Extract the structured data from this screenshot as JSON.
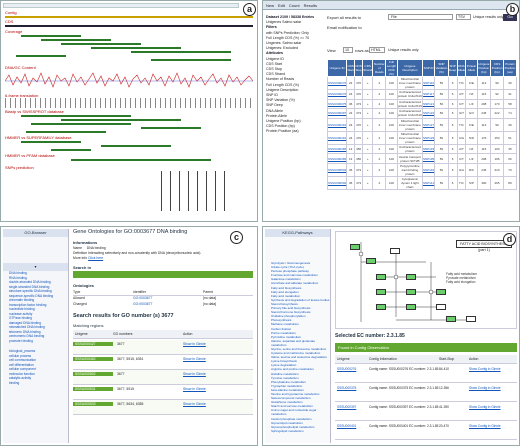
{
  "panel_a": {
    "label": "a",
    "tracks": [
      "Contig",
      "CDS",
      "Coverage",
      "DNA/GC Content",
      "6-frame translation",
      "Blastp vs SWISSPROT database",
      "HMMER vs SUPERFAMILY database",
      "HMMER vs PFAM database",
      "SNPs prediction"
    ]
  },
  "panel_b": {
    "label": "b",
    "toolbar": [
      "New",
      "Edit",
      "Count",
      "Results"
    ],
    "side": [
      "Dataset 2109 / 58338 Entries",
      "Unigenes Salmo salar",
      "Filters",
      "with SNPs Prediction: Only",
      "Full Length CDS (%) >= 70",
      "Ungenes: Salmo salar",
      "Unigenes: Excluded",
      "Attributes",
      "Unigene ID",
      "CDS Start",
      "CDS Stop",
      "CDS Strand",
      "Number of Reads",
      "Full Length CDS (%)",
      "Unigene Description",
      "SNP ID",
      "SNP Variation (%)",
      "SNP Deep",
      "DNA Allele",
      "Protein Allele",
      "Unigene Position (bp)",
      "CDS Position (bp)",
      "Protein Position (aa)"
    ],
    "export_label": "Export all results to",
    "export_value": "File",
    "export_format": "TSV",
    "unique": "Unique results only",
    "go": "Go",
    "email": "Email notification to",
    "view_label": "View",
    "view_count": "10",
    "rows_as": "rows as",
    "rows_format": "HTML",
    "cols": [
      "Unigene ID",
      "CDS Start",
      "CDS Stop",
      "CDS Strand",
      "Number of Reads",
      "Full Length CDS (%)",
      "Unigene Description",
      "SNP ID",
      "SNP Variation (%)",
      "SNP Deep",
      "DNA Allele",
      "Protein Allele",
      "Unigene Position (bp)",
      "CDS Position (bp)",
      "Protein Position (aa)"
    ],
    "rows": [
      [
        "SSSU000276",
        "24",
        "470",
        "+",
        "4",
        "100",
        "Mitochondrial inner membrane protein",
        "SNP116",
        "50",
        "6",
        "T/C",
        "K/E",
        "113",
        "90",
        "30"
      ],
      [
        "SSSU000276",
        "24",
        "470",
        "+",
        "4",
        "100",
        "Uncharacterized protein C14orf119",
        "SNP117",
        "50",
        "6",
        "A/T",
        "N/I",
        "115",
        "92",
        "31"
      ],
      [
        "SSSU000375",
        "36",
        "473",
        "+",
        "4",
        "100",
        "Uncharacterized protein C14orf119",
        "SNP121",
        "50",
        "6",
        "C/T",
        "L/F",
        "208",
        "173",
        "58"
      ],
      [
        "SSSU000397",
        "24",
        "473",
        "+",
        "4",
        "100",
        "Uncharacterized protein C14orf119",
        "SNP122",
        "50",
        "6",
        "G/T",
        "G/V",
        "245",
        "222",
        "74"
      ],
      [
        "SSSU000401",
        "24",
        "470",
        "+",
        "4",
        "100",
        "Mitochondrial inner membrane protein",
        "SNP127",
        "50",
        "6",
        "T/C",
        "K/E",
        "113",
        "90",
        "30"
      ],
      [
        "SSSU000401",
        "24",
        "470",
        "+",
        "4",
        "100",
        "Mitochondrial inner membrane protein",
        "SNP129",
        "50",
        "6",
        "A/G",
        "N/D",
        "176",
        "153",
        "51"
      ],
      [
        "SSSU000465",
        "13",
        "456",
        "+",
        "4",
        "100",
        "Uncharacterized protein",
        "SNP133",
        "50",
        "6",
        "A/T",
        "N/I",
        "115",
        "103",
        "35"
      ],
      [
        "SSSU000465",
        "13",
        "456",
        "+",
        "4",
        "100",
        "Vesicle transport protein SFT2B",
        "SNP135",
        "50",
        "6",
        "C/T",
        "L/F",
        "208",
        "196",
        "66"
      ],
      [
        "SSSU000502",
        "36",
        "473",
        "+",
        "4",
        "100",
        "Polypyrimidine tract-binding protein",
        "SNP140",
        "50",
        "6",
        "G/A",
        "R/K",
        "245",
        "210",
        "70"
      ],
      [
        "SSSU000502",
        "36",
        "473",
        "+",
        "4",
        "100",
        "Cytoplasmic dynein 1 light chain",
        "SNP141",
        "50",
        "6",
        "T/C",
        "S/P",
        "300",
        "265",
        "89"
      ]
    ]
  },
  "panel_c": {
    "label": "c",
    "browser": "GO-Browser",
    "title": "Gene Ontologies for GO:0003677 DNA binding",
    "info": "Informations",
    "name_label": "Name",
    "name_value": "DNA binding",
    "def_label": "Definition",
    "def_value": "Interacting selectively and non-covalently with DNA (deoxyribonucleic acid).",
    "more_label": "More info",
    "more_value": "Click here",
    "search_in": "Search in",
    "ontologies": "Ontologies",
    "onto_cols": [
      "Type",
      "Identifier",
      "Parent"
    ],
    "onto_rows": [
      [
        "Allowed",
        "GO:0003677",
        "[no data]"
      ],
      [
        "Changed",
        "GO:0003677",
        "[no data]"
      ]
    ],
    "results_title": "Search results for GO number (s) 3677",
    "matching": "Matching regions",
    "match_cols": [
      "Unigene",
      "GO numbers",
      "Action"
    ],
    "matches": [
      [
        "SSSU000427",
        "3677",
        "Show in Ginnie"
      ],
      [
        "SSSU000452",
        "3677, 5515, 6351",
        "Show in Ginnie"
      ],
      [
        "SSSU000502",
        "3677",
        "Show in Ginnie"
      ],
      [
        "SSSU000531",
        "3677, 5515",
        "Show in Ginnie"
      ],
      [
        "SSSU000533",
        "3677, 5634, 6355",
        "Show in Ginnie"
      ]
    ],
    "tree": [
      "DNA binding",
      "RNA binding",
      "double-stranded DNA binding",
      "single-stranded DNA binding",
      "structure-specific DNA binding",
      "sequence-specific DNA binding",
      "chromatin binding",
      "transcription factor binding",
      "nucleotide binding",
      "nuclease activity",
      "GTPase binding",
      "damaged DNA binding",
      "mismatched DNA binding",
      "telomeric DNA binding",
      "centromeric DNA binding",
      "promoter binding"
    ],
    "tree2": [
      "biological_process",
      "cellular process",
      "cell communication",
      "cell differentiation",
      "cellular component",
      "molecular function",
      "catalytic activity",
      "binding"
    ]
  },
  "panel_d": {
    "label": "d",
    "browser": "KEGG-Pathways",
    "pathway_title": "FATTY ACID BIOSYNTHESIS (part 1)",
    "selected": "Selected EC number: 2.3.1.85",
    "found": "Found in Contig Observation",
    "match_cols": [
      "Unigene",
      "Contig Information",
      "Start-Stop",
      "Action"
    ],
    "matches": [
      [
        "SSSU000276",
        "Contig name: SSSU000276 EC number: 2.3.1.85",
        "84-410",
        "Show Contig in Ginnie"
      ],
      [
        "SSSU000375",
        "Contig name: SSSU000375 EC number: 2.3.1.85",
        "12-356",
        "Show Contig in Ginnie"
      ],
      [
        "SSSU000397",
        "Contig name: SSSU000397 EC number: 2.3.1.85",
        "41-390",
        "Show Contig in Ginnie"
      ],
      [
        "SSSU000401",
        "Contig name: SSSU000401 EC number: 2.3.1.85",
        "20-470",
        "Show Contig in Ginnie"
      ]
    ],
    "pathways": [
      "Glycolysis / Gluconeogenesis",
      "Citrate cycle (TCA cycle)",
      "Pentose phosphate pathway",
      "Fructose and mannose metabolism",
      "Galactose metabolism",
      "Ascorbate and aldarate metabolism",
      "Fatty acid biosynthesis",
      "Fatty acid elongation",
      "Fatty acid metabolism",
      "Synthesis and degradation of ketone bodies",
      "Steroid biosynthesis",
      "Primary bile acid biosynthesis",
      "Steroid hormone biosynthesis",
      "Oxidative phosphorylation",
      "Photosynthesis",
      "Methane metabolism",
      "Carbon fixation",
      "Purine metabolism",
      "Pyrimidine metabolism",
      "Alanine, aspartate and glutamate metabolism",
      "Glycine, serine and threonine metabolism",
      "Cysteine and methionine metabolism",
      "Valine, leucine and isoleucine degradation",
      "Lysine biosynthesis",
      "Lysine degradation",
      "Arginine and proline metabolism",
      "Histidine metabolism",
      "Tyrosine metabolism",
      "Phenylalanine metabolism",
      "Tryptophan metabolism",
      "beta-Alanine metabolism",
      "Taurine and hypotaurine metabolism",
      "Selenocompound metabolism",
      "Glutathione metabolism",
      "Starch and sucrose metabolism",
      "Amino sugar and nucleotide sugar metabolism",
      "Inositol phosphate metabolism",
      "Glycerolipid metabolism",
      "Glycerophospholipid metabolism",
      "Sphingolipid metabolism"
    ],
    "legend": [
      "Fatty acid metabolism",
      "Pyruvate metabolism",
      "Fatty acid elongation"
    ]
  }
}
